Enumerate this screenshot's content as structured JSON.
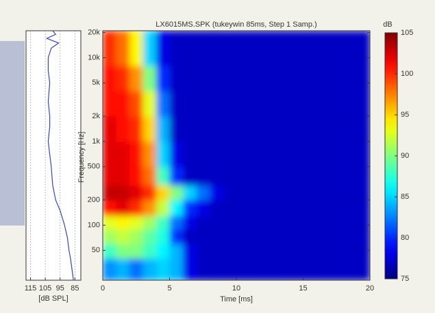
{
  "chart_data": [
    {
      "type": "heatmap",
      "title": "LX6015MS.SPK (tukeywin 85ms, Step 1 Samp.)",
      "xlabel": "Time [ms]",
      "ylabel": "Frequency [Hz]",
      "xbins": [
        0,
        1,
        2,
        3,
        4,
        5,
        6,
        7,
        8,
        9,
        10,
        11,
        12,
        13,
        14,
        15,
        16,
        17,
        18,
        19,
        20
      ],
      "ybins": [
        22,
        40,
        60,
        90,
        130,
        200,
        300,
        500,
        1000,
        2000,
        4000,
        8000,
        21000
      ],
      "z": [
        [
          83,
          84,
          82,
          84,
          85,
          84,
          78,
          77,
          77,
          77,
          77,
          77,
          77,
          77,
          77,
          77,
          77,
          77,
          77,
          77
        ],
        [
          88,
          90,
          90,
          88,
          86,
          84,
          78,
          77,
          77,
          77,
          77,
          77,
          77,
          77,
          77,
          77,
          77,
          77,
          77,
          77
        ],
        [
          91,
          92,
          91,
          89,
          87,
          80,
          77,
          77,
          77,
          77,
          77,
          77,
          77,
          77,
          77,
          77,
          77,
          77,
          77,
          77
        ],
        [
          93,
          94,
          93,
          91,
          88,
          82,
          78,
          77,
          77,
          77,
          77,
          77,
          77,
          77,
          77,
          77,
          77,
          77,
          77,
          77
        ],
        [
          101,
          102,
          100,
          97,
          92,
          86,
          80,
          78,
          77,
          77,
          77,
          77,
          77,
          77,
          77,
          77,
          77,
          77,
          77,
          77
        ],
        [
          103,
          103,
          102,
          100,
          95,
          90,
          85,
          82,
          78,
          77,
          77,
          77,
          77,
          77,
          77,
          77,
          77,
          77,
          77,
          77
        ],
        [
          102,
          102,
          101,
          98,
          88,
          80,
          77,
          77,
          77,
          77,
          77,
          77,
          77,
          77,
          77,
          77,
          77,
          77,
          77,
          77
        ],
        [
          102,
          102,
          101,
          97,
          85,
          78,
          77,
          77,
          77,
          77,
          77,
          77,
          77,
          77,
          77,
          77,
          77,
          77,
          77,
          77
        ],
        [
          102,
          101,
          100,
          95,
          84,
          77,
          77,
          77,
          77,
          77,
          77,
          77,
          77,
          77,
          77,
          77,
          77,
          77,
          77,
          77
        ],
        [
          101,
          101,
          99,
          93,
          82,
          77,
          77,
          77,
          77,
          77,
          77,
          77,
          77,
          77,
          77,
          77,
          77,
          77,
          77,
          77
        ],
        [
          101,
          100,
          97,
          90,
          80,
          77,
          77,
          77,
          77,
          77,
          77,
          77,
          77,
          77,
          77,
          77,
          77,
          77,
          77,
          77
        ],
        [
          100,
          98,
          94,
          85,
          78,
          77,
          77,
          77,
          77,
          77,
          77,
          77,
          77,
          77,
          77,
          77,
          77,
          77,
          77,
          77
        ]
      ],
      "xlim": [
        0,
        20
      ],
      "xticks": [
        0,
        5,
        10,
        15,
        20
      ],
      "ylim": [
        22,
        21000
      ],
      "log_y": true,
      "yticks": [
        50,
        100,
        200,
        500,
        {
          "value": 1000,
          "label": "1k"
        },
        {
          "value": 2000,
          "label": "2k"
        },
        {
          "value": 5000,
          "label": "5k"
        },
        {
          "value": 10000,
          "label": "10k"
        },
        {
          "value": 20000,
          "label": "20k"
        }
      ],
      "colormap": "jet",
      "colorbar": {
        "label": "dB",
        "clim": [
          75,
          105
        ],
        "ticks": [
          75,
          80,
          85,
          90,
          95,
          100,
          105
        ]
      }
    },
    {
      "type": "line",
      "xlabel": "[dB SPL]",
      "y": [
        22,
        30,
        40,
        50,
        70,
        100,
        150,
        200,
        300,
        500,
        700,
        1000,
        1500,
        2000,
        3000,
        5000,
        7000,
        10000,
        13000,
        15000,
        17000,
        19000,
        21000
      ],
      "values": [
        86,
        87,
        88,
        89,
        90,
        92,
        95,
        98,
        100,
        101,
        102,
        103,
        102,
        102,
        103,
        102,
        103,
        103,
        101,
        96,
        104,
        98,
        100
      ],
      "color": "#3344cc",
      "xlim": [
        118,
        81
      ],
      "xticks": [
        115,
        105,
        95,
        85
      ],
      "ylim": [
        22,
        21000
      ],
      "log_y": true,
      "grid": true
    }
  ]
}
